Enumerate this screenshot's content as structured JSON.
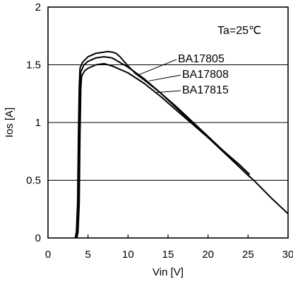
{
  "chart_data": {
    "type": "line",
    "title": "",
    "xlabel": "Vin [V]",
    "ylabel": "Ios [A]",
    "xlim": [
      0,
      30
    ],
    "ylim": [
      0,
      2
    ],
    "x_ticks": [
      "0",
      "5",
      "10",
      "15",
      "20",
      "25",
      "30"
    ],
    "y_ticks": [
      "0",
      "0.5",
      "1",
      "1.5",
      "2"
    ],
    "grid": "horizontal",
    "annotation": "Ta=25℃",
    "series": [
      {
        "name": "BA17805",
        "x": [
          3.4,
          3.55,
          3.7,
          3.8,
          3.9,
          4.0,
          4.3,
          5,
          6,
          7,
          7.5,
          8,
          8.5,
          9,
          10,
          11,
          12,
          14,
          16,
          18,
          20,
          22,
          24,
          26,
          28,
          30
        ],
        "y": [
          0,
          0.05,
          0.3,
          0.9,
          1.3,
          1.47,
          1.52,
          1.57,
          1.6,
          1.61,
          1.615,
          1.61,
          1.6,
          1.57,
          1.49,
          1.42,
          1.37,
          1.26,
          1.14,
          1.01,
          0.88,
          0.75,
          0.61,
          0.48,
          0.34,
          0.21
        ]
      },
      {
        "name": "BA17808",
        "x": [
          3.5,
          3.65,
          3.8,
          3.9,
          4.0,
          4.1,
          4.5,
          5,
          6,
          7,
          8,
          9,
          10,
          12,
          14,
          16,
          18,
          20,
          22,
          24,
          25.2
        ],
        "y": [
          0,
          0.05,
          0.3,
          0.9,
          1.3,
          1.44,
          1.5,
          1.53,
          1.56,
          1.57,
          1.56,
          1.52,
          1.48,
          1.38,
          1.26,
          1.13,
          1.0,
          0.87,
          0.74,
          0.61,
          0.53
        ]
      },
      {
        "name": "BA17815",
        "x": [
          3.6,
          3.75,
          3.9,
          4.0,
          4.1,
          4.2,
          4.6,
          5,
          6,
          7,
          8,
          9,
          10,
          12,
          14,
          16,
          18,
          20,
          22,
          24,
          25.2
        ],
        "y": [
          0,
          0.05,
          0.3,
          0.9,
          1.3,
          1.4,
          1.45,
          1.47,
          1.5,
          1.51,
          1.49,
          1.46,
          1.43,
          1.34,
          1.23,
          1.11,
          0.99,
          0.87,
          0.75,
          0.63,
          0.55
        ]
      }
    ]
  }
}
